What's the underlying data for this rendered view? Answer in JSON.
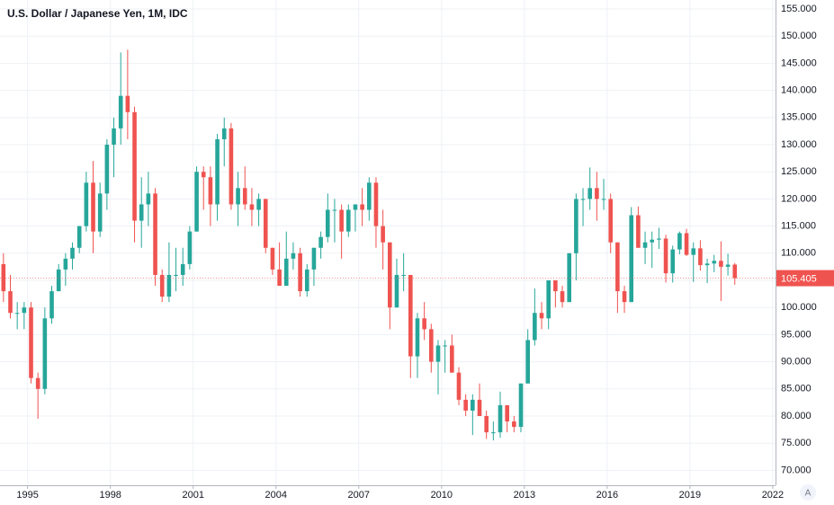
{
  "chart_data": {
    "type": "candlestick",
    "title": "U.S. Dollar / Japanese Yen, 1M, IDC",
    "up_color": "#26a69a",
    "down_color": "#ef5350",
    "grid": true,
    "xlim": [
      1994,
      2022.1
    ],
    "ylim": [
      67.25,
      156.66
    ],
    "xticks": [
      1995,
      1998,
      2001,
      2004,
      2007,
      2010,
      2013,
      2016,
      2019,
      2022
    ],
    "yticks": [
      {
        "value": 70,
        "label": "70.000"
      },
      {
        "value": 75,
        "label": "75.000"
      },
      {
        "value": 80,
        "label": "80.000"
      },
      {
        "value": 85,
        "label": "85.000"
      },
      {
        "value": 90,
        "label": "90.000"
      },
      {
        "value": 95,
        "label": "95.000"
      },
      {
        "value": 100,
        "label": "100.000"
      },
      {
        "value": 105,
        "label": "105.000"
      },
      {
        "value": 110,
        "label": "110.000"
      },
      {
        "value": 115,
        "label": "115.000"
      },
      {
        "value": 120,
        "label": "120.000"
      },
      {
        "value": 125,
        "label": "125.000"
      },
      {
        "value": 130,
        "label": "130.000"
      },
      {
        "value": 135,
        "label": "135.000"
      },
      {
        "value": 140,
        "label": "140.000"
      },
      {
        "value": 145,
        "label": "145.000"
      },
      {
        "value": 150,
        "label": "150.000"
      },
      {
        "value": 155,
        "label": "155.000"
      }
    ],
    "last_price": 105.405,
    "auto_scale_label": "A",
    "x": [
      1994.125,
      1994.375,
      1994.625,
      1994.875,
      1995.125,
      1995.375,
      1995.625,
      1995.875,
      1996.125,
      1996.375,
      1996.625,
      1996.875,
      1997.125,
      1997.375,
      1997.625,
      1997.875,
      1998.125,
      1998.375,
      1998.625,
      1998.875,
      1999.125,
      1999.375,
      1999.625,
      1999.875,
      2000.125,
      2000.375,
      2000.625,
      2000.875,
      2001.125,
      2001.375,
      2001.625,
      2001.875,
      2002.125,
      2002.375,
      2002.625,
      2002.875,
      2003.125,
      2003.375,
      2003.625,
      2003.875,
      2004.125,
      2004.375,
      2004.625,
      2004.875,
      2005.125,
      2005.375,
      2005.625,
      2005.875,
      2006.125,
      2006.375,
      2006.625,
      2006.875,
      2007.125,
      2007.375,
      2007.625,
      2007.875,
      2008.125,
      2008.375,
      2008.625,
      2008.875,
      2009.125,
      2009.375,
      2009.625,
      2009.875,
      2010.125,
      2010.375,
      2010.625,
      2010.875,
      2011.125,
      2011.375,
      2011.625,
      2011.875,
      2012.125,
      2012.375,
      2012.625,
      2012.875,
      2013.125,
      2013.375,
      2013.625,
      2013.875,
      2014.125,
      2014.375,
      2014.625,
      2014.875,
      2015.125,
      2015.375,
      2015.625,
      2015.875,
      2016.125,
      2016.375,
      2016.625,
      2016.875,
      2017.125,
      2017.375,
      2017.625,
      2017.875,
      2018.125,
      2018.375,
      2018.625,
      2018.875,
      2019.125,
      2019.375,
      2019.625,
      2019.875,
      2020.125,
      2020.375,
      2020.625
    ],
    "open": [
      108,
      103,
      99,
      99,
      100,
      87,
      85,
      98,
      103,
      107,
      109,
      111,
      115,
      123,
      114,
      121,
      130,
      133,
      139,
      136,
      116,
      119,
      121,
      106,
      102,
      106,
      106,
      108,
      114,
      125,
      124,
      119,
      131,
      133,
      119,
      122,
      119,
      118,
      120,
      111,
      107,
      104,
      109,
      110,
      103,
      107,
      111,
      113,
      118,
      118,
      114,
      118,
      119,
      118,
      123,
      115,
      112,
      100,
      106,
      106,
      91,
      98,
      96,
      90,
      93,
      93,
      88,
      83,
      81,
      83,
      80,
      77,
      77,
      82,
      79,
      78,
      86,
      94,
      99,
      98,
      105,
      103,
      101,
      110,
      120,
      120,
      122,
      120,
      120,
      112,
      103,
      101,
      117,
      111,
      112,
      112.5,
      112.7,
      106.3,
      110.7,
      113.7,
      109.7,
      110.9,
      107.8,
      108.1,
      108.6,
      107.5,
      107.9
    ],
    "high": [
      110,
      106,
      101,
      101,
      101,
      88,
      100,
      104,
      108,
      110,
      112,
      115,
      125,
      127,
      123,
      131,
      135,
      147,
      147.5,
      137,
      124,
      125,
      122,
      107,
      112,
      111,
      111,
      115,
      126,
      126,
      126,
      132,
      135,
      134,
      125,
      126,
      122,
      121,
      120,
      111,
      112,
      114,
      112,
      111,
      108,
      111,
      114,
      121,
      120,
      119,
      119,
      119,
      122,
      124,
      124,
      118,
      112,
      109,
      110,
      106,
      99,
      101,
      97,
      94,
      94,
      95,
      89,
      84,
      84,
      86,
      81,
      79,
      84.5,
      82,
      80,
      86,
      96,
      103.5,
      101,
      105,
      105,
      104,
      110,
      121,
      122,
      125.8,
      125,
      123.7,
      121,
      112,
      104,
      118.5,
      118.6,
      114,
      114,
      114.7,
      113.4,
      111.4,
      114,
      114.5,
      112,
      112.4,
      109,
      109.7,
      112.2,
      109.9,
      108.2
    ],
    "low": [
      101,
      98,
      96,
      96,
      86,
      79.5,
      84,
      97,
      103,
      104,
      107,
      110,
      114,
      110,
      113,
      118,
      124,
      130,
      131,
      112,
      111,
      115,
      104,
      101,
      101,
      103,
      104,
      107,
      114,
      118,
      115,
      116,
      126,
      118,
      115,
      118,
      115,
      115,
      110,
      106,
      104,
      104,
      107,
      102,
      102,
      104,
      109,
      112,
      112,
      109,
      113,
      114,
      115,
      116,
      111,
      107,
      96,
      100,
      103,
      87,
      87,
      94,
      88,
      84,
      88,
      88,
      82,
      80,
      76.5,
      80,
      75.8,
      75.5,
      76,
      77,
      77,
      77,
      86,
      93,
      96,
      96,
      100,
      100,
      101,
      105,
      115,
      118,
      116,
      118,
      110,
      99,
      99,
      101,
      111,
      108,
      107.3,
      110.8,
      104.6,
      104.6,
      109.8,
      109.5,
      104.7,
      106.8,
      104.5,
      106.5,
      101.2,
      105.9,
      104.2
    ],
    "close": [
      103,
      99,
      99,
      100,
      87,
      85,
      98,
      103,
      107,
      109,
      111,
      115,
      123,
      114,
      121,
      130,
      133,
      139,
      136,
      116,
      119,
      121,
      106,
      102,
      106,
      106,
      108,
      114,
      125,
      124,
      119,
      131,
      133,
      119,
      122,
      119,
      118,
      120,
      111,
      107,
      104,
      109,
      110,
      103,
      107,
      111,
      113,
      118,
      118,
      114,
      118,
      119,
      118,
      123,
      115,
      112,
      100,
      106,
      106,
      91,
      98,
      96,
      90,
      93,
      93,
      88,
      83,
      81,
      83,
      80,
      77,
      77,
      82,
      79,
      78,
      86,
      94,
      99,
      98,
      105,
      103,
      101,
      110,
      120,
      120,
      122,
      120,
      120,
      112,
      103,
      101,
      117,
      111,
      112,
      112.5,
      112.7,
      106.3,
      110.7,
      113.7,
      109.7,
      110.9,
      107.8,
      108.1,
      108.6,
      107.5,
      107.9,
      105.405
    ]
  }
}
